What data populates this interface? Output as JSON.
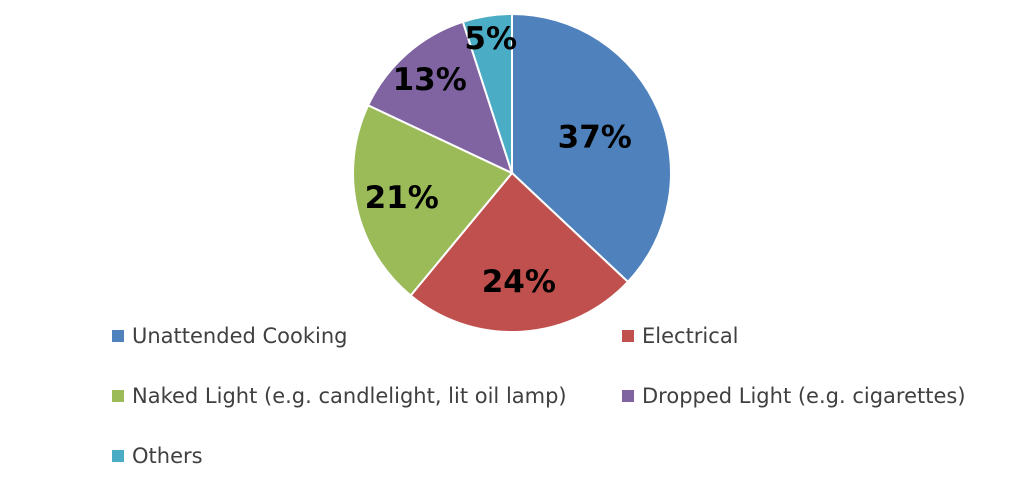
{
  "chart_data": {
    "type": "pie",
    "categories": [
      "Unattended Cooking",
      "Electrical",
      "Naked Light (e.g. candlelight, lit oil lamp)",
      "Dropped Light (e.g. cigarettes)",
      "Others"
    ],
    "values": [
      37,
      24,
      21,
      13,
      5
    ],
    "value_labels": [
      "37%",
      "24%",
      "21%",
      "13%",
      "5%"
    ],
    "colors": [
      "#4f81bd",
      "#c0504d",
      "#9bbb59",
      "#8064a2",
      "#4bacc6"
    ],
    "legend": "bottom"
  }
}
